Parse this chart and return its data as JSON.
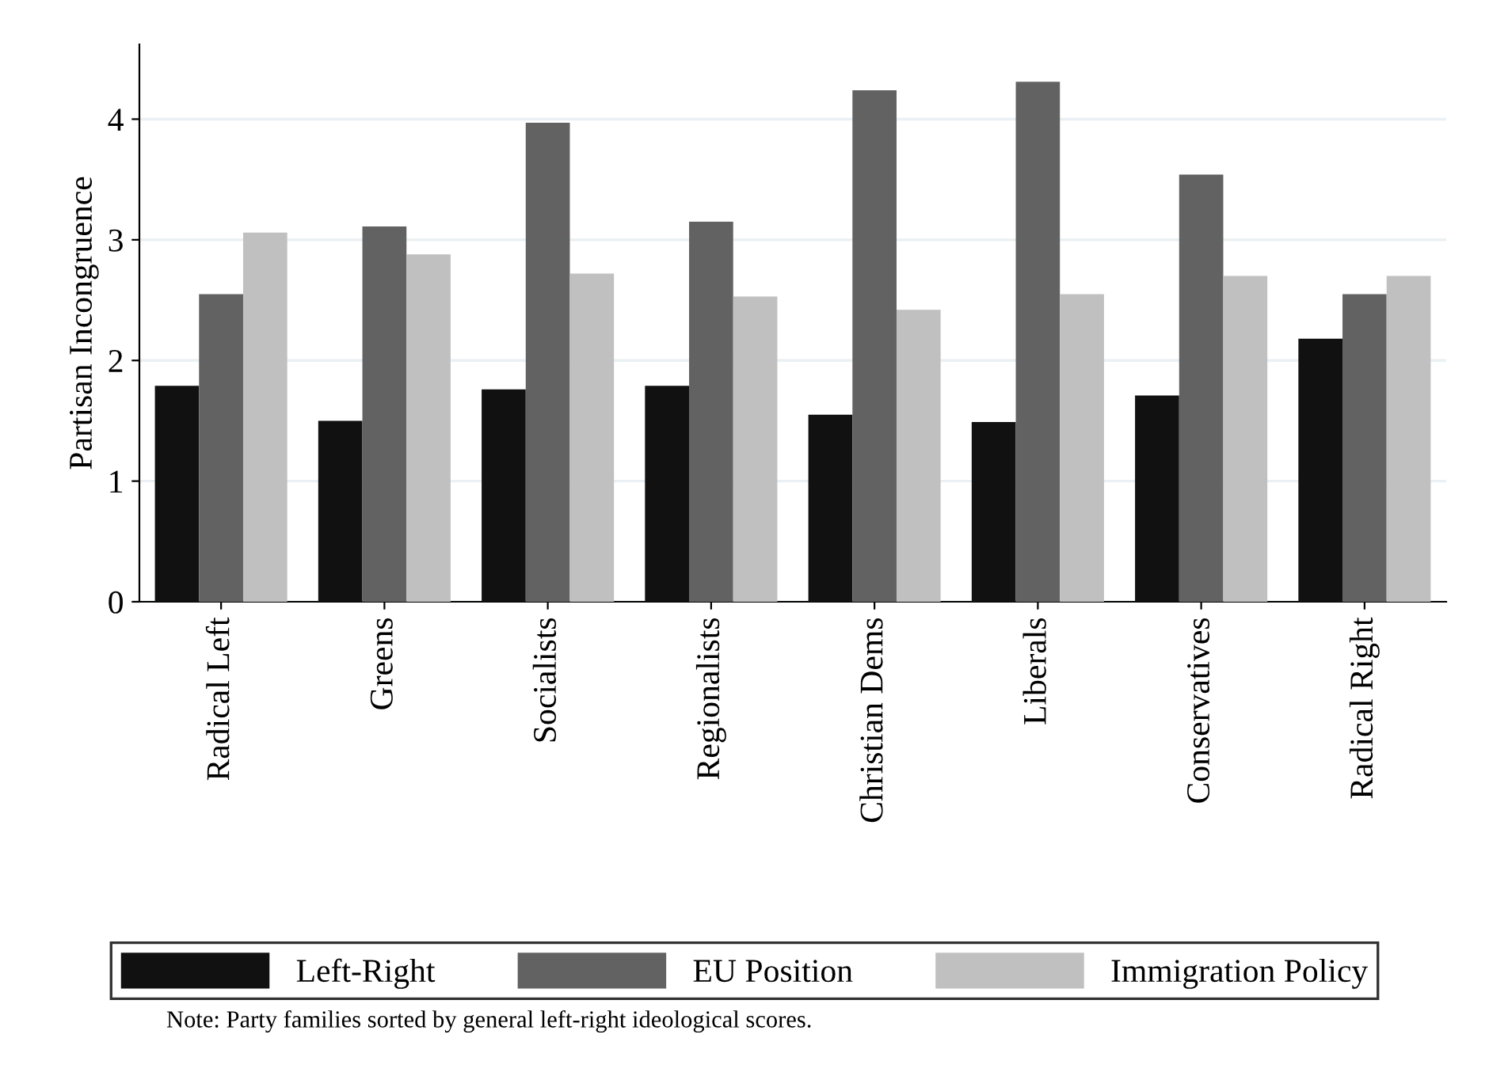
{
  "chart_data": {
    "type": "bar",
    "ylabel": "Partisan Incongruence",
    "categories": [
      "Radical Left",
      "Greens",
      "Socialists",
      "Regionalists",
      "Christian Dems",
      "Liberals",
      "Conservatives",
      "Radical Right"
    ],
    "series": [
      {
        "name": "Left-Right",
        "color": "#111111",
        "values": [
          1.79,
          1.5,
          1.76,
          1.79,
          1.55,
          1.49,
          1.71,
          2.18
        ]
      },
      {
        "name": "EU Position",
        "color": "#626262",
        "values": [
          2.55,
          3.11,
          3.97,
          3.15,
          4.24,
          4.31,
          3.54,
          2.55
        ]
      },
      {
        "name": "Immigration Policy",
        "color": "#c0c0c0",
        "values": [
          3.06,
          2.88,
          2.72,
          2.53,
          2.42,
          2.55,
          2.7,
          2.7
        ]
      }
    ],
    "ylim": [
      0,
      4.62
    ],
    "yticks": [
      0,
      1,
      2,
      3,
      4
    ],
    "grid": "y",
    "legend": "bottom",
    "annotations": [
      "Note: Party families sorted by general left-right ideological scores."
    ]
  }
}
